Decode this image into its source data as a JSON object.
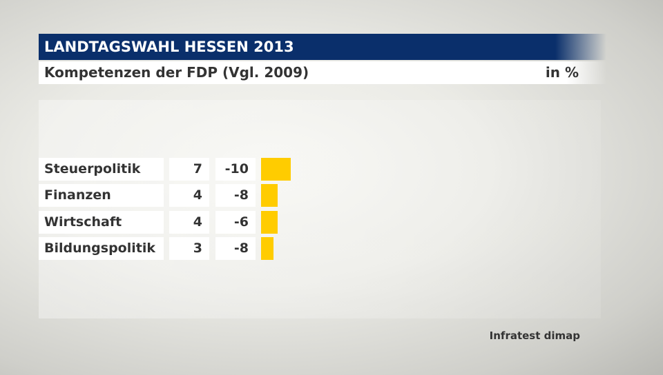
{
  "chart_data": {
    "type": "bar",
    "title": "LANDTAGSWAHL HESSEN 2013",
    "subtitle": "Kompetenzen der FDP (Vgl. 2009)",
    "unit": "in %",
    "categories": [
      "Steuerpolitik",
      "Finanzen",
      "Wirtschaft",
      "Bildungspolitik"
    ],
    "values": [
      7,
      4,
      4,
      3
    ],
    "changes": [
      "-10",
      "-8",
      "-6",
      "-8"
    ],
    "bar_color": "#ffcc00",
    "source": "Infratest dimap"
  }
}
